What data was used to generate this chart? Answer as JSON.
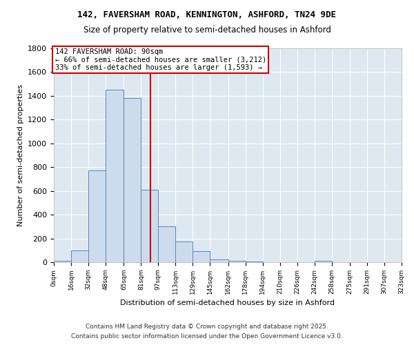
{
  "title1": "142, FAVERSHAM ROAD, KENNINGTON, ASHFORD, TN24 9DE",
  "title2": "Size of property relative to semi-detached houses in Ashford",
  "xlabel": "Distribution of semi-detached houses by size in Ashford",
  "ylabel": "Number of semi-detached properties",
  "bin_edges": [
    0,
    16,
    32,
    48,
    65,
    81,
    97,
    113,
    129,
    145,
    162,
    178,
    194,
    210,
    226,
    242,
    258,
    275,
    291,
    307,
    323
  ],
  "bin_labels": [
    "0sqm",
    "16sqm",
    "32sqm",
    "48sqm",
    "65sqm",
    "81sqm",
    "97sqm",
    "113sqm",
    "129sqm",
    "145sqm",
    "162sqm",
    "178sqm",
    "194sqm",
    "210sqm",
    "226sqm",
    "242sqm",
    "258sqm",
    "275sqm",
    "291sqm",
    "307sqm",
    "323sqm"
  ],
  "values": [
    10,
    100,
    775,
    1450,
    1380,
    610,
    300,
    175,
    95,
    25,
    10,
    5,
    0,
    0,
    0,
    10,
    0,
    0,
    0,
    0
  ],
  "bar_color": "#ccdcec",
  "bar_edge_color": "#5588bb",
  "property_size": 90,
  "vline_color": "#cc0000",
  "annotation_title": "142 FAVERSHAM ROAD: 90sqm",
  "annotation_line1": "← 66% of semi-detached houses are smaller (3,212)",
  "annotation_line2": "33% of semi-detached houses are larger (1,593) →",
  "annotation_box_color": "#cc0000",
  "ylim": [
    0,
    1800
  ],
  "yticks": [
    0,
    200,
    400,
    600,
    800,
    1000,
    1200,
    1400,
    1600,
    1800
  ],
  "background_color": "#dde8f0",
  "grid_color": "#ffffff",
  "footer1": "Contains HM Land Registry data © Crown copyright and database right 2025.",
  "footer2": "Contains public sector information licensed under the Open Government Licence v3.0."
}
